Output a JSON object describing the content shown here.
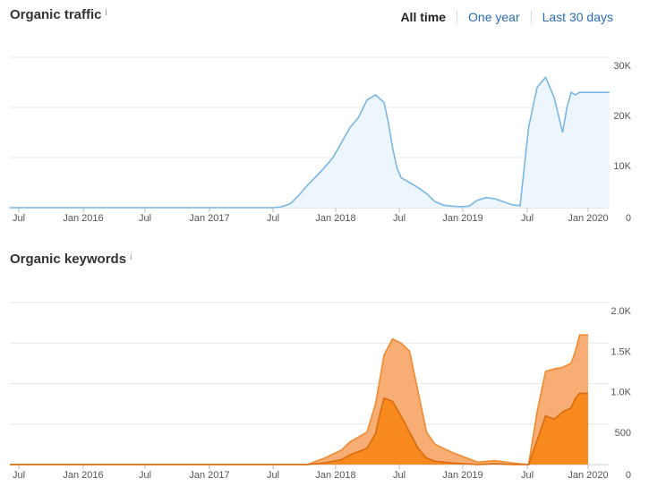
{
  "range_selector": {
    "options": [
      "All time",
      "One year",
      "Last 30 days"
    ],
    "selected": "All time"
  },
  "chart_data": [
    {
      "type": "area",
      "title": "Organic traffic",
      "info_icon": "i",
      "x_ticks": [
        "Jul",
        "Jan 2016",
        "Jul",
        "Jan 2017",
        "Jul",
        "Jan 2018",
        "Jul",
        "Jan 2019",
        "Jul",
        "Jan 2020"
      ],
      "y_ticks": [
        "30K",
        "20K",
        "10K",
        "0"
      ],
      "ylim": [
        0,
        30000
      ],
      "color": "#7ab6e4",
      "fill": "#edf6fd",
      "grid": true,
      "x_unit": "months since Jul 2015",
      "series": [
        {
          "x": [
            0,
            30,
            31,
            32,
            33,
            34,
            35,
            36,
            37,
            38,
            39,
            40,
            41,
            42,
            43,
            44,
            44.5,
            45,
            45.5,
            46,
            47,
            48,
            49,
            50,
            51,
            52,
            53,
            54,
            55,
            56,
            57,
            58,
            59,
            60,
            61,
            62,
            63,
            64,
            65,
            65.5,
            66,
            66.5,
            67,
            67.5,
            68,
            68.5,
            69,
            69.5,
            70,
            70.5
          ],
          "values": [
            0,
            0,
            0,
            200,
            800,
            2500,
            4500,
            6200,
            8000,
            10000,
            13000,
            16000,
            18000,
            21500,
            22500,
            21000,
            17000,
            12000,
            8000,
            6000,
            5000,
            4000,
            2800,
            1200,
            500,
            300,
            200,
            300,
            1500,
            2000,
            1800,
            1200,
            600,
            400,
            16000,
            24000,
            26000,
            22000,
            15000,
            20000,
            23000,
            22500,
            23000,
            23000,
            23000,
            23000,
            23000,
            23000,
            23000,
            23000
          ]
        }
      ]
    },
    {
      "type": "area",
      "title": "Organic keywords",
      "info_icon": "i",
      "x_ticks": [
        "Jul",
        "Jan 2016",
        "Jul",
        "Jan 2017",
        "Jul",
        "Jan 2018",
        "Jul",
        "Jan 2019",
        "Jul",
        "Jan 2020"
      ],
      "y_ticks": [
        "2.0K",
        "1.5K",
        "1.0K",
        "500",
        "0"
      ],
      "ylim": [
        0,
        2000
      ],
      "grid": true,
      "series": [
        {
          "color": "#f7ad73",
          "stroke": "#f08a2e",
          "x": [
            0,
            35,
            37,
            39,
            40,
            42,
            43,
            43.5,
            44,
            45,
            46,
            47,
            48,
            49,
            50,
            52,
            55,
            57,
            59,
            61,
            62,
            63,
            64,
            65,
            66,
            66.5,
            67,
            67.5,
            68
          ],
          "values": [
            0,
            0,
            80,
            180,
            280,
            400,
            750,
            1050,
            1350,
            1550,
            1500,
            1400,
            900,
            400,
            250,
            150,
            30,
            50,
            20,
            0,
            650,
            1150,
            1180,
            1200,
            1250,
            1400,
            1600,
            1600,
            1600
          ]
        },
        {
          "color": "#f7891f",
          "stroke": "#d96b0c",
          "x": [
            0,
            35,
            37,
            39,
            40,
            42,
            43,
            43.5,
            44,
            45,
            46,
            47,
            48,
            49,
            50,
            52,
            55,
            57,
            59,
            61,
            62,
            63,
            64,
            65,
            66,
            66.5,
            67,
            67.5,
            68
          ],
          "values": [
            0,
            0,
            20,
            60,
            120,
            200,
            380,
            620,
            820,
            780,
            600,
            400,
            200,
            80,
            40,
            20,
            0,
            10,
            0,
            0,
            300,
            600,
            560,
            650,
            700,
            820,
            880,
            880,
            880
          ]
        }
      ]
    }
  ]
}
